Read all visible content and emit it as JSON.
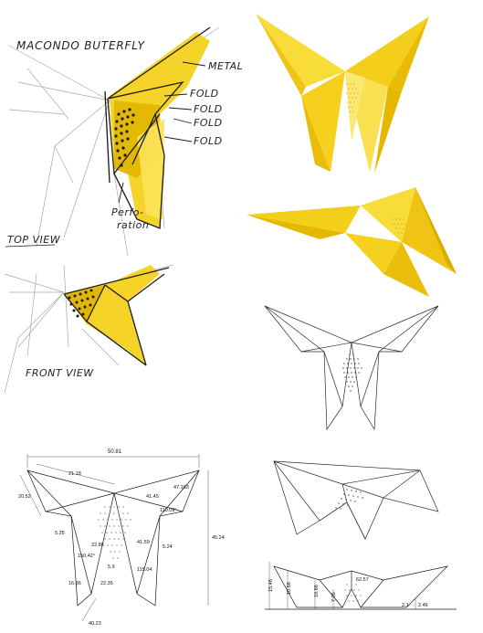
{
  "sketch": {
    "title": "MACONDO BUTERFLY",
    "labels": {
      "metal": "METAL",
      "fold1": "FOLD",
      "fold2": "FOLD",
      "fold3": "FOLD",
      "fold4": "FOLD",
      "perforation_1": "Perfo-",
      "perforation_2": "ration",
      "top_view": "TOP VIEW",
      "front_view": "FRONT VIEW"
    }
  },
  "colors": {
    "yellow": "#f5d11e",
    "yellow_dark": "#e0b400",
    "yellow_light": "#fbe35a",
    "ink": "#1a1a1a",
    "pencil": "#9a9a9a"
  },
  "drawing": {
    "dims": {
      "total_width": "50.81",
      "top_edge": "21.18",
      "left_edge": "20.52",
      "wing_small": "5.25",
      "inner_diag": "150.42°",
      "inner_a": "16.86",
      "inner_b": "22.35",
      "bottom": "40.23",
      "center_a": "22.86",
      "center_b": "5.9",
      "right_top": "47.163",
      "right_mid": "41.45",
      "right_c": "110.09°",
      "right_d": "5.24",
      "right_e": "41.59",
      "right_f": "115.04",
      "height": "45.24"
    },
    "front_dims": {
      "h1": "15.46",
      "h2": "10.66",
      "h3": "10.66",
      "h4": "7.35",
      "h5": "62.57",
      "h6": "2.1",
      "h7": "2.46"
    }
  }
}
